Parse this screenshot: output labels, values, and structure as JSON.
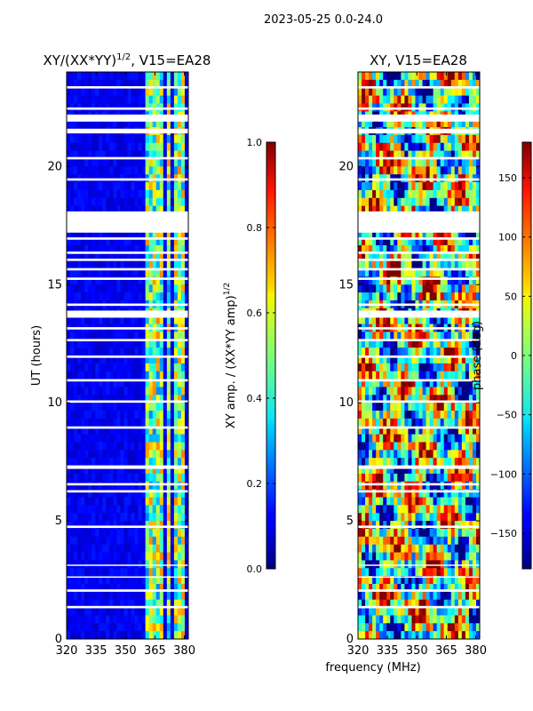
{
  "suptitle": "2023-05-25 0.0-24.0",
  "xlabel_shared": "frequency (MHz)",
  "chart_data": [
    {
      "type": "heatmap",
      "title": "XY/(XX*YY)",
      "title_sup": "1/2",
      "title_suffix": ", V15=EA28",
      "xlabel": "",
      "ylabel": "UT (hours)",
      "xlim": [
        320,
        382
      ],
      "ylim": [
        0,
        24
      ],
      "xticks": [
        320,
        335,
        350,
        365,
        380
      ],
      "yticks": [
        0,
        5,
        10,
        15,
        20
      ],
      "colormap": "jet",
      "colorbar": {
        "label": "XY amp. / (XX*YY amp)",
        "label_sup": "1/2",
        "range": [
          0.0,
          1.0
        ],
        "ticks": [
          "0.0",
          "0.2",
          "0.4",
          "0.6",
          "0.8",
          "1.0"
        ]
      },
      "rfi_channels_MHz": [
        361,
        363,
        365,
        367,
        369,
        372,
        375,
        378,
        380
      ]
    },
    {
      "type": "heatmap",
      "title": "XY, V15=EA28",
      "xlabel": "frequency (MHz)",
      "ylabel": "",
      "xlim": [
        320,
        382
      ],
      "ylim": [
        0,
        24
      ],
      "xticks": [
        320,
        335,
        350,
        365,
        380
      ],
      "yticks": [
        0,
        5,
        10,
        15,
        20
      ],
      "colormap": "jet",
      "colorbar": {
        "label": "phase (deg)",
        "range": [
          -180,
          180
        ],
        "ticks": [
          "−150",
          "−100",
          "−50",
          "0",
          "50",
          "100",
          "150"
        ]
      }
    }
  ],
  "flagged_ut_ranges_hours": [
    [
      1.3,
      1.4
    ],
    [
      2.0,
      2.1
    ],
    [
      2.6,
      2.65
    ],
    [
      3.1,
      3.15
    ],
    [
      4.7,
      4.8
    ],
    [
      6.2,
      6.3
    ],
    [
      6.5,
      6.6
    ],
    [
      7.2,
      7.35
    ],
    [
      8.9,
      9.0
    ],
    [
      10.0,
      10.1
    ],
    [
      10.9,
      11.0
    ],
    [
      11.9,
      12.0
    ],
    [
      12.6,
      12.7
    ],
    [
      13.1,
      13.2
    ],
    [
      13.6,
      13.9
    ],
    [
      14.1,
      14.2
    ],
    [
      15.2,
      15.3
    ],
    [
      15.6,
      15.7
    ],
    [
      16.0,
      16.1
    ],
    [
      16.3,
      16.4
    ],
    [
      16.9,
      17.0
    ],
    [
      17.2,
      18.1
    ],
    [
      19.4,
      19.5
    ],
    [
      20.3,
      20.4
    ],
    [
      21.4,
      21.6
    ],
    [
      21.9,
      22.2
    ],
    [
      22.4,
      22.5
    ],
    [
      23.3,
      23.4
    ],
    [
      24.0,
      24.0
    ]
  ]
}
